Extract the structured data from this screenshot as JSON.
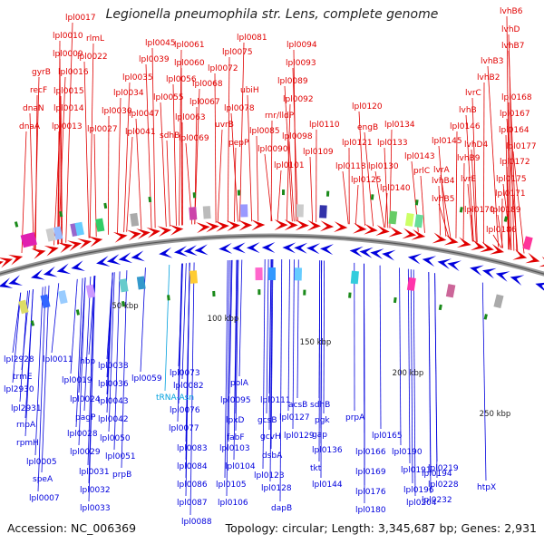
{
  "title": "Legionella pneumophila str. Lens, complete genome",
  "accession": "Accession: NC_006369",
  "summary": "Topology: circular; Length: 3,345,687 bp; Genes: 2,931",
  "colors": {
    "forward": "#e00000",
    "reverse": "#0000dd",
    "rna": "#00a0dd",
    "backbone": "#888888",
    "tick": "#1a8a1a"
  },
  "scale_labels": [
    "50 kbp",
    "100 kbp",
    "150 kbp",
    "200 kbp",
    "250 kbp"
  ],
  "forward_labels": [
    "lpl0017",
    "rlmL",
    "lpl0010",
    "lpl0009",
    "lpl0022",
    "lpl0016",
    "gyrB",
    "recF",
    "lpl0015",
    "dnaN",
    "lpl0014",
    "dnaA",
    "lpl0013",
    "lpl0045",
    "lpl0039",
    "lpl0035",
    "lpl0034",
    "lpl0030",
    "lpl0027",
    "lpl0047",
    "lpl0041",
    "lpl0061",
    "lpl0060",
    "lpl0056",
    "lpl0055",
    "lpl0068",
    "lpl0067",
    "lpl0063",
    "sdhB",
    "lpl0069",
    "lpl0081",
    "lpl0075",
    "lpl0072",
    "ubiH",
    "lpl0078",
    "uvrB",
    "pepP",
    "lpl0094",
    "lpl0093",
    "lpl0089",
    "lpl0092",
    "rnr/lldP",
    "lpl0085",
    "lpl0098",
    "lpl0090",
    "lpl0101",
    "lpl0110",
    "lpl0109",
    "lpl0120",
    "engB",
    "lpl0134",
    "lpl0121",
    "lpl0133",
    "lpl0118",
    "lpl0130",
    "lpl0125",
    "lvhB6",
    "lvhD",
    "lvhB7",
    "lvhB3",
    "lvhB2",
    "lpl0168",
    "lvrC",
    "lvhB",
    "lpl0167",
    "lpl0146",
    "lpl0164",
    "lvhD4",
    "lpl0145",
    "lpl0177",
    "lvhB9",
    "lpl0172",
    "prlC",
    "lpl0143",
    "lvrA",
    "lpl0140",
    "lvhB4",
    "lvrE",
    "lpl0175",
    "lvhB5",
    "lpl0171",
    "lpl0170",
    "lpl0189",
    "lpl0186"
  ],
  "reverse_labels": [
    "lpl2928",
    "trmE",
    "lpl2930",
    "lpl2931",
    "rnpA",
    "rpmH",
    "lpl0005",
    "speA",
    "lpl0007",
    "lpl0011",
    "lpl0019",
    "hbp",
    "lpl0024",
    "pagP",
    "lpl0028",
    "lpl0029",
    "lpl0031",
    "lpl0032",
    "lpl0033",
    "lpl0038",
    "lpl0036",
    "lpl0043",
    "lpl0042",
    "lpl0050",
    "lpl0051",
    "prpB",
    "lpl0059",
    "lpl0073",
    "tRNA-Asn",
    "lpl0082",
    "lpl0076",
    "lpl0077",
    "lpl0083",
    "lpl0084",
    "lpl0086",
    "lpl0087",
    "lpl0088",
    "polA",
    "lpl0095",
    "lpxD",
    "fabF",
    "lpl0103",
    "lpl0104",
    "lpl0105",
    "lpl0106",
    "lpl0111",
    "gcsB",
    "gcvH",
    "dsbA",
    "lpl0123",
    "lpl0128",
    "dapB",
    "acsB",
    "lpl0127",
    "lpl0129",
    "sdhB",
    "pgk",
    "gap",
    "lpl0136",
    "tkt",
    "lpl0144",
    "prpA",
    "lpl0165",
    "lpl0166",
    "lpl0169",
    "lpl0176",
    "lpl0180",
    "lpl0190",
    "lpl0191",
    "lpl0196",
    "lpl0204",
    "lpl0194",
    "lpl0219",
    "lpl0228",
    "lpl0232",
    "htpX"
  ]
}
